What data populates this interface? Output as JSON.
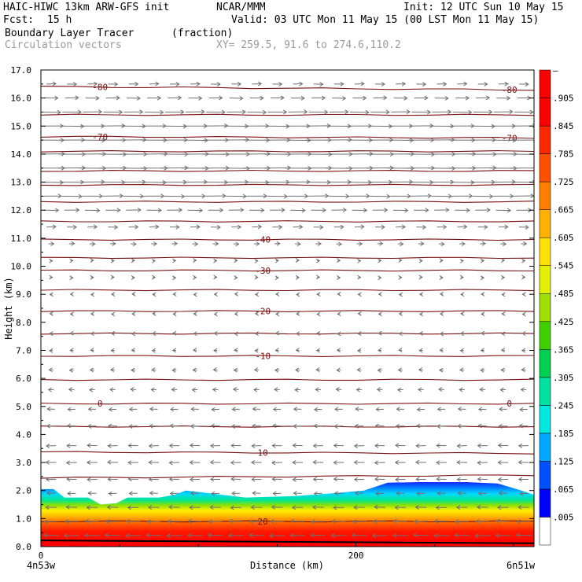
{
  "header": {
    "model": "HAIC-HIWC 13km ARW-GFS init",
    "org": "NCAR/MMM",
    "init": "Init: 12 UTC Sun 10 May 15",
    "fcst_label": "Fcst:",
    "fcst_value": "15 h",
    "valid": "Valid: 03 UTC Mon 11 May 15 (00 LST Mon 11 May 15)",
    "field_name": "Boundary Layer Tracer",
    "field_units": "(fraction)",
    "overlay": "Circulation vectors",
    "xy": "XY= 259.5, 91.6 to 274.6,110.2"
  },
  "chart_data": {
    "type": "heatmap",
    "title": "Boundary Layer Tracer",
    "xlabel": "Distance (km)",
    "ylabel": "Height (km)",
    "xlim": [
      0,
      313
    ],
    "ylim": [
      0,
      17
    ],
    "x_ticks": [
      {
        "v": 0,
        "label": "0"
      },
      {
        "v": 200,
        "label": "200"
      }
    ],
    "x_end_labels": {
      "left": "4n53w",
      "right": "6n51w"
    },
    "y_ticks": [
      "0.0",
      "1.0",
      "2.0",
      "3.0",
      "4.0",
      "5.0",
      "6.0",
      "7.0",
      "8.0",
      "9.0",
      "10.0",
      "11.0",
      "12.0",
      "13.0",
      "14.0",
      "15.0",
      "16.0",
      "17.0"
    ],
    "tracer_top_km": {
      "x": [
        0,
        8,
        15,
        30,
        38,
        48,
        55,
        75,
        85,
        92,
        130,
        160,
        185,
        205,
        220,
        240,
        270,
        290,
        305,
        313
      ],
      "y": [
        2.05,
        2.05,
        1.75,
        1.75,
        1.5,
        1.55,
        1.75,
        1.75,
        1.85,
        2.0,
        1.75,
        1.8,
        1.9,
        2.0,
        2.28,
        2.3,
        2.3,
        2.25,
        2.0,
        1.85
      ]
    },
    "colorbar": {
      "labels": [
        ".005",
        ".065",
        ".125",
        ".185",
        ".245",
        ".305",
        ".365",
        ".425",
        ".485",
        ".545",
        ".605",
        ".665",
        ".725",
        ".785",
        ".845",
        ".905",
        "–"
      ],
      "colors": [
        "#ffffff",
        "#0000ff",
        "#0050ff",
        "#00a8ff",
        "#00e8e0",
        "#00e0a0",
        "#00d050",
        "#40d000",
        "#a0e000",
        "#e0f000",
        "#ffe000",
        "#ffb000",
        "#ff8000",
        "#ff5000",
        "#ff2800",
        "#ff0000",
        "#ff0000"
      ]
    },
    "contours": [
      {
        "y_km": 16.35,
        "tilt": -0.12,
        "label": "-80"
      },
      {
        "y_km": 15.4,
        "tilt": 0,
        "label": ""
      },
      {
        "y_km": 14.6,
        "tilt": -0.05,
        "label": "-70"
      },
      {
        "y_km": 14.1,
        "tilt": 0,
        "label": ""
      },
      {
        "y_km": 13.4,
        "tilt": 0,
        "label": ""
      },
      {
        "y_km": 12.9,
        "tilt": 0,
        "label": ""
      },
      {
        "y_km": 12.3,
        "tilt": 0,
        "label": ""
      },
      {
        "y_km": 11.6,
        "tilt": 0,
        "label": ""
      },
      {
        "y_km": 10.95,
        "tilt": 0,
        "label": "-40"
      },
      {
        "y_km": 10.3,
        "tilt": 0,
        "label": ""
      },
      {
        "y_km": 9.85,
        "tilt": 0,
        "label": "-30"
      },
      {
        "y_km": 9.15,
        "tilt": 0,
        "label": ""
      },
      {
        "y_km": 8.4,
        "tilt": 0,
        "label": "-20"
      },
      {
        "y_km": 7.6,
        "tilt": 0,
        "label": ""
      },
      {
        "y_km": 6.8,
        "tilt": 0,
        "label": "-10"
      },
      {
        "y_km": 5.95,
        "tilt": 0,
        "label": ""
      },
      {
        "y_km": 5.1,
        "tilt": 0,
        "label": "0"
      },
      {
        "y_km": 4.28,
        "tilt": 0,
        "label": ""
      },
      {
        "y_km": 3.35,
        "tilt": -0.05,
        "label": "10"
      },
      {
        "y_km": 2.5,
        "tilt": 0.1,
        "label": ""
      },
      {
        "y_km": 0.9,
        "tilt": 0,
        "label": "20"
      }
    ],
    "vectors": {
      "rows_km": [
        16.5,
        16.0,
        15.5,
        15.0,
        14.5,
        14.0,
        13.5,
        13.0,
        12.5,
        12.0,
        11.4,
        10.8,
        10.2,
        9.6,
        9.0,
        8.3,
        7.6,
        7.0,
        6.3,
        5.6,
        4.9,
        4.3,
        3.6,
        3.0,
        2.4,
        1.9,
        1.4,
        0.9,
        0.4
      ],
      "u_rel": [
        0.35,
        0.5,
        0.7,
        0.9,
        0.95,
        1.0,
        1.0,
        0.9,
        0.75,
        0.55,
        0.35,
        0.2,
        0.08,
        0.04,
        -0.04,
        -0.08,
        -0.1,
        -0.12,
        -0.15,
        -0.2,
        -0.28,
        -0.32,
        -0.36,
        -0.38,
        -0.36,
        -0.3,
        -0.4,
        -0.5,
        -0.55
      ],
      "n_cols": 24
    }
  }
}
